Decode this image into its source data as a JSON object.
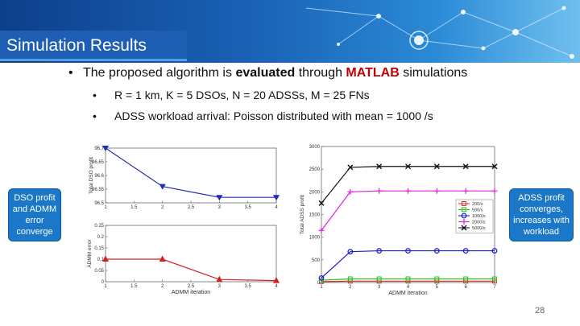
{
  "slide": {
    "title": "Simulation Results",
    "bullet_main": {
      "prefix": "The proposed algorithm is ",
      "bold": "evaluated",
      "middle": " through ",
      "highlight": "MATLAB",
      "suffix": " simulations"
    },
    "sub_bullets": [
      "R = 1 km, K = 5 DSOs, N = 20 ADSSs, M = 25 FNs",
      "ADSS workload arrival: Poisson distributed with mean = 1000 /s"
    ],
    "left_callout": "DSO profit and ADMM error converge",
    "right_callout": "ADSS profit converges, increases with workload",
    "slide_number": "28",
    "colors": {
      "banner": "#1b63b8",
      "callout": "#1b78c8",
      "highlight": "#c00000"
    }
  },
  "chart_data": [
    {
      "type": "line",
      "title": "",
      "xlabel": "",
      "ylabel": "Total DSO profit",
      "x": [
        1,
        2,
        3,
        4
      ],
      "xticks": [
        "1",
        "1.5",
        "2",
        "2.5",
        "3",
        "3.5",
        "4"
      ],
      "yticks": [
        "96.5",
        "96.55",
        "96.6",
        "96.65",
        "96.7"
      ],
      "ylim": [
        96.5,
        96.7
      ],
      "series": [
        {
          "values": [
            96.7,
            96.56,
            96.52,
            96.52
          ],
          "color": "#1f2fb3"
        }
      ]
    },
    {
      "type": "line",
      "title": "",
      "xlabel": "ADMM iteration",
      "ylabel": "ADMM error",
      "x": [
        1,
        2,
        3,
        4
      ],
      "xticks": [
        "1",
        "1.5",
        "2",
        "2.5",
        "3",
        "3.5",
        "4"
      ],
      "yticks": [
        "0",
        "0.05",
        "0.1",
        "0.15",
        "0.2",
        "0.25"
      ],
      "ylim": [
        0,
        0.25
      ],
      "series": [
        {
          "values": [
            0.1,
            0.1,
            0.01,
            0.005
          ],
          "color": "#d12020"
        }
      ]
    },
    {
      "type": "line",
      "title": "",
      "xlabel": "ADMM iteration",
      "ylabel": "Total ADSS profit",
      "x": [
        1,
        2,
        3,
        4,
        5,
        6,
        7
      ],
      "xticks": [
        "1",
        "2",
        "3",
        "4",
        "5",
        "6",
        "7"
      ],
      "yticks": [
        "0",
        "500",
        "1000",
        "1500",
        "2000",
        "2500",
        "3000"
      ],
      "ylim": [
        0,
        3000
      ],
      "legend": "top-right",
      "series": [
        {
          "name": "200/s",
          "color": "#e02020",
          "marker": "square",
          "values": [
            20,
            30,
            30,
            30,
            30,
            30,
            30
          ]
        },
        {
          "name": "500/s",
          "color": "#20c020",
          "marker": "square",
          "values": [
            50,
            80,
            80,
            80,
            80,
            80,
            80
          ]
        },
        {
          "name": "1000/s",
          "color": "#1a1acc",
          "marker": "circle",
          "values": [
            100,
            680,
            700,
            700,
            700,
            700,
            700
          ]
        },
        {
          "name": "2000/s",
          "color": "#e020e0",
          "marker": "plus",
          "values": [
            1150,
            2000,
            2020,
            2020,
            2020,
            2020,
            2020
          ]
        },
        {
          "name": "5000/s",
          "color": "#111111",
          "marker": "x",
          "values": [
            1750,
            2540,
            2560,
            2560,
            2560,
            2560,
            2560
          ]
        }
      ]
    }
  ]
}
